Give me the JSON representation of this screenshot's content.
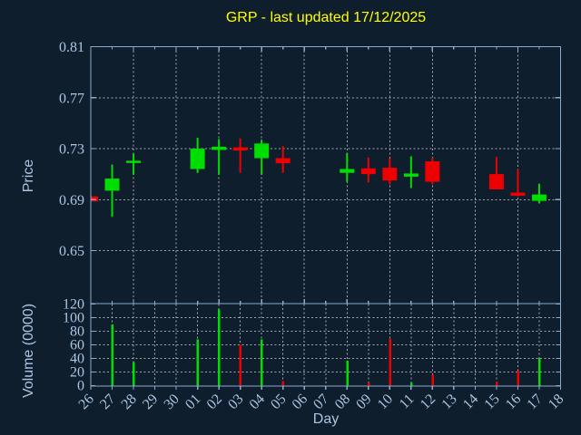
{
  "colors": {
    "background": "#0f1e2d",
    "axis": "#8aabcb",
    "tick_text": "#a9c6e3",
    "grid": "#b9bfc5",
    "up": "#00dd00",
    "down": "#ef0000",
    "title": "#ffff00"
  },
  "labels": {
    "price_axis": "Price",
    "volume_axis": "Volume (0000)",
    "x_axis": "Day"
  },
  "chart_data": {
    "type": "candlestick_with_volume",
    "title": "GRP - last updated 17/12/2025",
    "x_categories": [
      "26",
      "27",
      "28",
      "29",
      "30",
      "01",
      "02",
      "03",
      "04",
      "05",
      "06",
      "07",
      "08",
      "09",
      "10",
      "11",
      "12",
      "13",
      "14",
      "15",
      "16",
      "17",
      "18"
    ],
    "price_axis": {
      "tick_values": [
        0.81,
        0.77,
        0.73,
        0.69,
        0.65
      ],
      "range_top": 0.81,
      "range_bottom": 0.608,
      "grid": "horizontal dashed at ticks, vertical dashed every 2 days"
    },
    "volume_axis": {
      "tick_values": [
        120,
        100,
        80,
        60,
        40,
        20,
        0
      ],
      "range": [
        0,
        121
      ],
      "grid": "horizontal dashed at ticks, vertical dashed every day"
    },
    "candles": [
      {
        "day": "26",
        "open": 0.6925,
        "high": 0.693,
        "low": 0.6885,
        "close": 0.6885
      },
      {
        "day": "27",
        "open": 0.697,
        "high": 0.7175,
        "low": 0.6765,
        "close": 0.7065
      },
      {
        "day": "28",
        "open": 0.719,
        "high": 0.726,
        "low": 0.7095,
        "close": 0.7205
      },
      {
        "day": "01",
        "open": 0.714,
        "high": 0.7385,
        "low": 0.711,
        "close": 0.73
      },
      {
        "day": "02",
        "open": 0.729,
        "high": 0.7375,
        "low": 0.7095,
        "close": 0.7315
      },
      {
        "day": "03",
        "open": 0.731,
        "high": 0.738,
        "low": 0.711,
        "close": 0.7285
      },
      {
        "day": "04",
        "open": 0.7225,
        "high": 0.737,
        "low": 0.7095,
        "close": 0.734
      },
      {
        "day": "05",
        "open": 0.7225,
        "high": 0.732,
        "low": 0.711,
        "close": 0.7185
      },
      {
        "day": "08",
        "open": 0.711,
        "high": 0.7265,
        "low": 0.704,
        "close": 0.714
      },
      {
        "day": "09",
        "open": 0.7145,
        "high": 0.723,
        "low": 0.7035,
        "close": 0.71
      },
      {
        "day": "10",
        "open": 0.715,
        "high": 0.7225,
        "low": 0.702,
        "close": 0.705
      },
      {
        "day": "11",
        "open": 0.708,
        "high": 0.724,
        "low": 0.699,
        "close": 0.7105
      },
      {
        "day": "12",
        "open": 0.72,
        "high": 0.723,
        "low": 0.702,
        "close": 0.704
      },
      {
        "day": "15",
        "open": 0.71,
        "high": 0.7235,
        "low": 0.698,
        "close": 0.698
      },
      {
        "day": "16",
        "open": 0.6955,
        "high": 0.7135,
        "low": 0.6925,
        "close": 0.693
      },
      {
        "day": "17",
        "open": 0.689,
        "high": 0.7025,
        "low": 0.687,
        "close": 0.694
      }
    ],
    "volumes": [
      {
        "day": "27",
        "value": 90,
        "dir": "up"
      },
      {
        "day": "28",
        "value": 35,
        "dir": "up"
      },
      {
        "day": "01",
        "value": 68,
        "dir": "up"
      },
      {
        "day": "02",
        "value": 112,
        "dir": "up"
      },
      {
        "day": "03",
        "value": 60,
        "dir": "down"
      },
      {
        "day": "04",
        "value": 68,
        "dir": "up"
      },
      {
        "day": "05",
        "value": 7,
        "dir": "down"
      },
      {
        "day": "08",
        "value": 37,
        "dir": "up"
      },
      {
        "day": "09",
        "value": 5,
        "dir": "down"
      },
      {
        "day": "10",
        "value": 69,
        "dir": "down"
      },
      {
        "day": "11",
        "value": 4,
        "dir": "up"
      },
      {
        "day": "12",
        "value": 16,
        "dir": "down"
      },
      {
        "day": "15",
        "value": 6,
        "dir": "down"
      },
      {
        "day": "16",
        "value": 22,
        "dir": "down"
      },
      {
        "day": "17",
        "value": 41,
        "dir": "up"
      }
    ]
  }
}
